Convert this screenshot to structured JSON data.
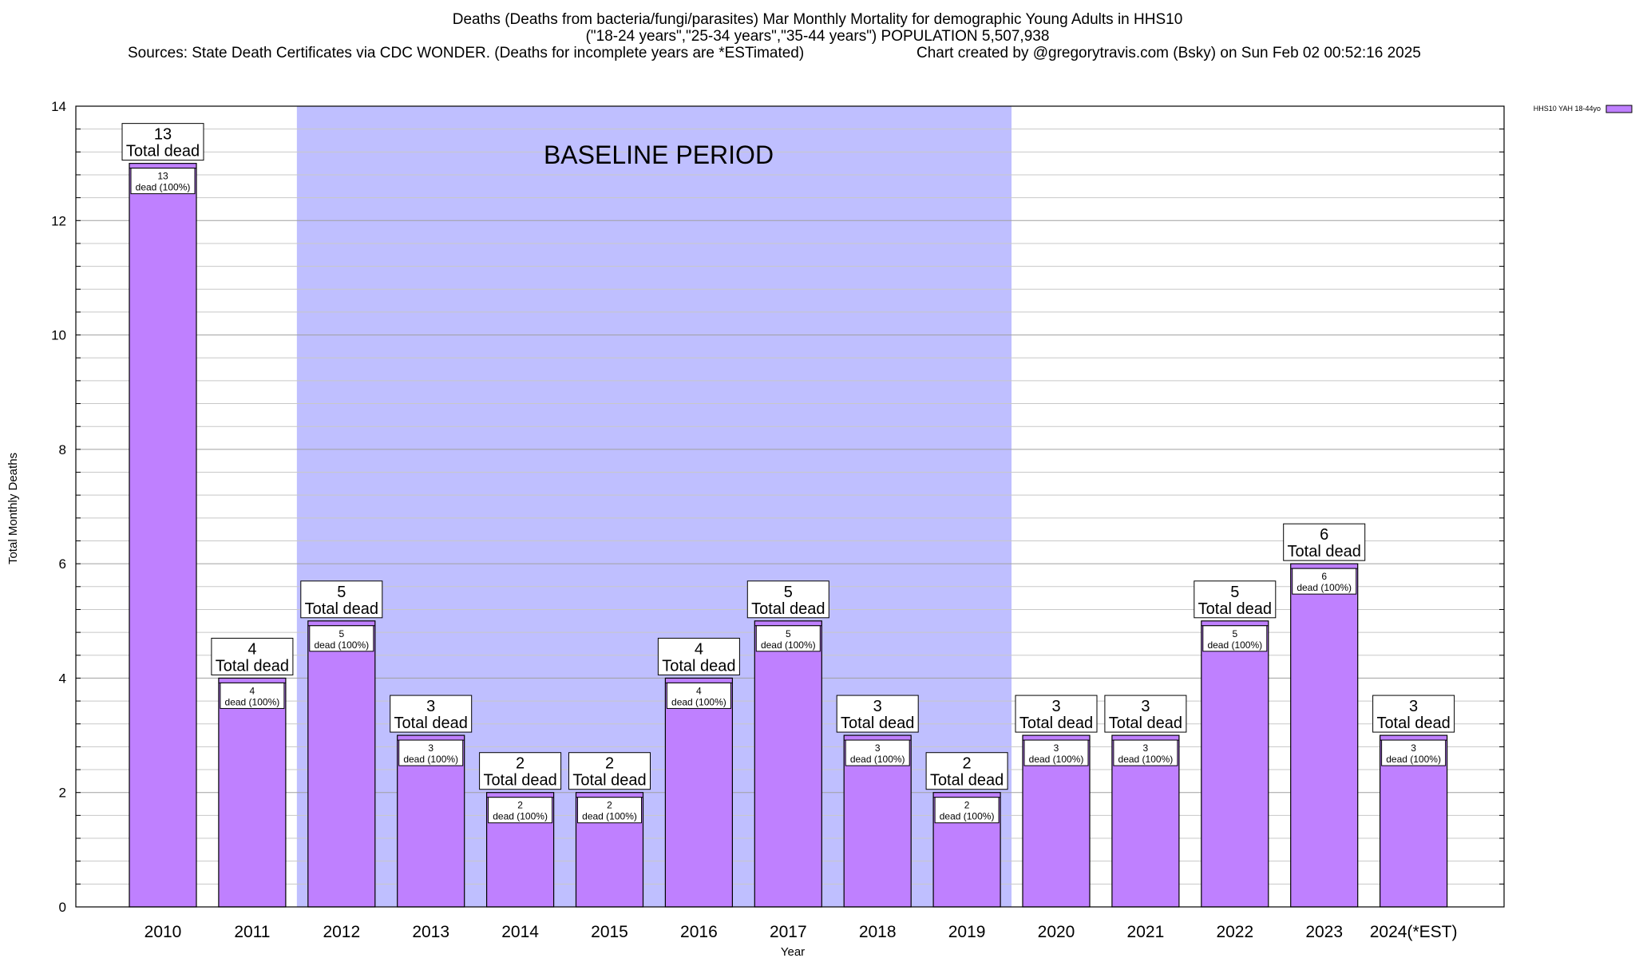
{
  "title": {
    "line1": "Deaths (Deaths from bacteria/fungi/parasites) Mar Monthly Mortality for demographic Young Adults in HHS10",
    "line2": "(\"18-24 years\",\"25-34 years\",\"35-44 years\") POPULATION 5,507,938",
    "sources": "Sources: State Death Certificates via CDC WONDER. (Deaths for incomplete years are *ESTimated)",
    "credit": "Chart created by @gregorytravis.com (Bsky) on Sun Feb 02 00:52:16 2025"
  },
  "baseline_label": "BASELINE PERIOD",
  "colors": {
    "bar_fill": "#bf80ff",
    "bar_stroke": "#000000",
    "baseline_shade": "#bfbfff",
    "grid": "#c8c8c8"
  },
  "chart_data": {
    "type": "bar",
    "xlabel": "Year",
    "ylabel": "Total Monthly Deaths",
    "ylim": [
      0,
      14
    ],
    "yticks": [
      0,
      2,
      4,
      6,
      8,
      10,
      12,
      14
    ],
    "grid": true,
    "legend": {
      "position": "top-right",
      "entries": [
        "HHS10 YAH 18-44yo"
      ]
    },
    "categories": [
      "2010",
      "2011",
      "2012",
      "2013",
      "2014",
      "2015",
      "2016",
      "2017",
      "2018",
      "2019",
      "2020",
      "2021",
      "2022",
      "2023",
      "2024(*EST)"
    ],
    "series": [
      {
        "name": "HHS10 YAH 18-44yo",
        "values": [
          13,
          4,
          5,
          3,
          2,
          2,
          4,
          5,
          3,
          2,
          3,
          3,
          5,
          6,
          3
        ]
      }
    ],
    "top_label_suffix": "Total dead",
    "inner_label_suffix": "dead (100%)",
    "baseline_period": {
      "start": "2012",
      "end": "2019",
      "label": "BASELINE PERIOD"
    }
  }
}
